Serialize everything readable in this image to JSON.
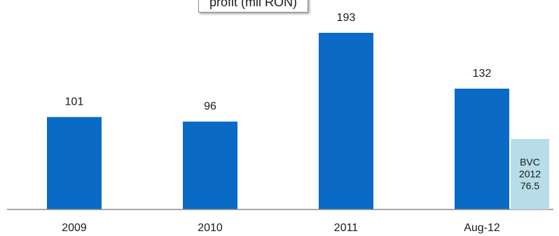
{
  "chart_data": {
    "type": "bar",
    "title": "profit (mil RON)",
    "categories": [
      "2009",
      "2010",
      "2011",
      "Aug-12"
    ],
    "values": [
      101,
      96,
      193,
      132
    ],
    "data_labels": [
      "101",
      "96",
      "193",
      "132"
    ],
    "ylim": [
      0,
      193
    ],
    "grid": false,
    "bar_color": "#0a6ac6",
    "annotation": {
      "lines": [
        "BVC",
        "2012",
        "76.5"
      ],
      "value": 76.5,
      "color": "#b7dde8"
    }
  }
}
